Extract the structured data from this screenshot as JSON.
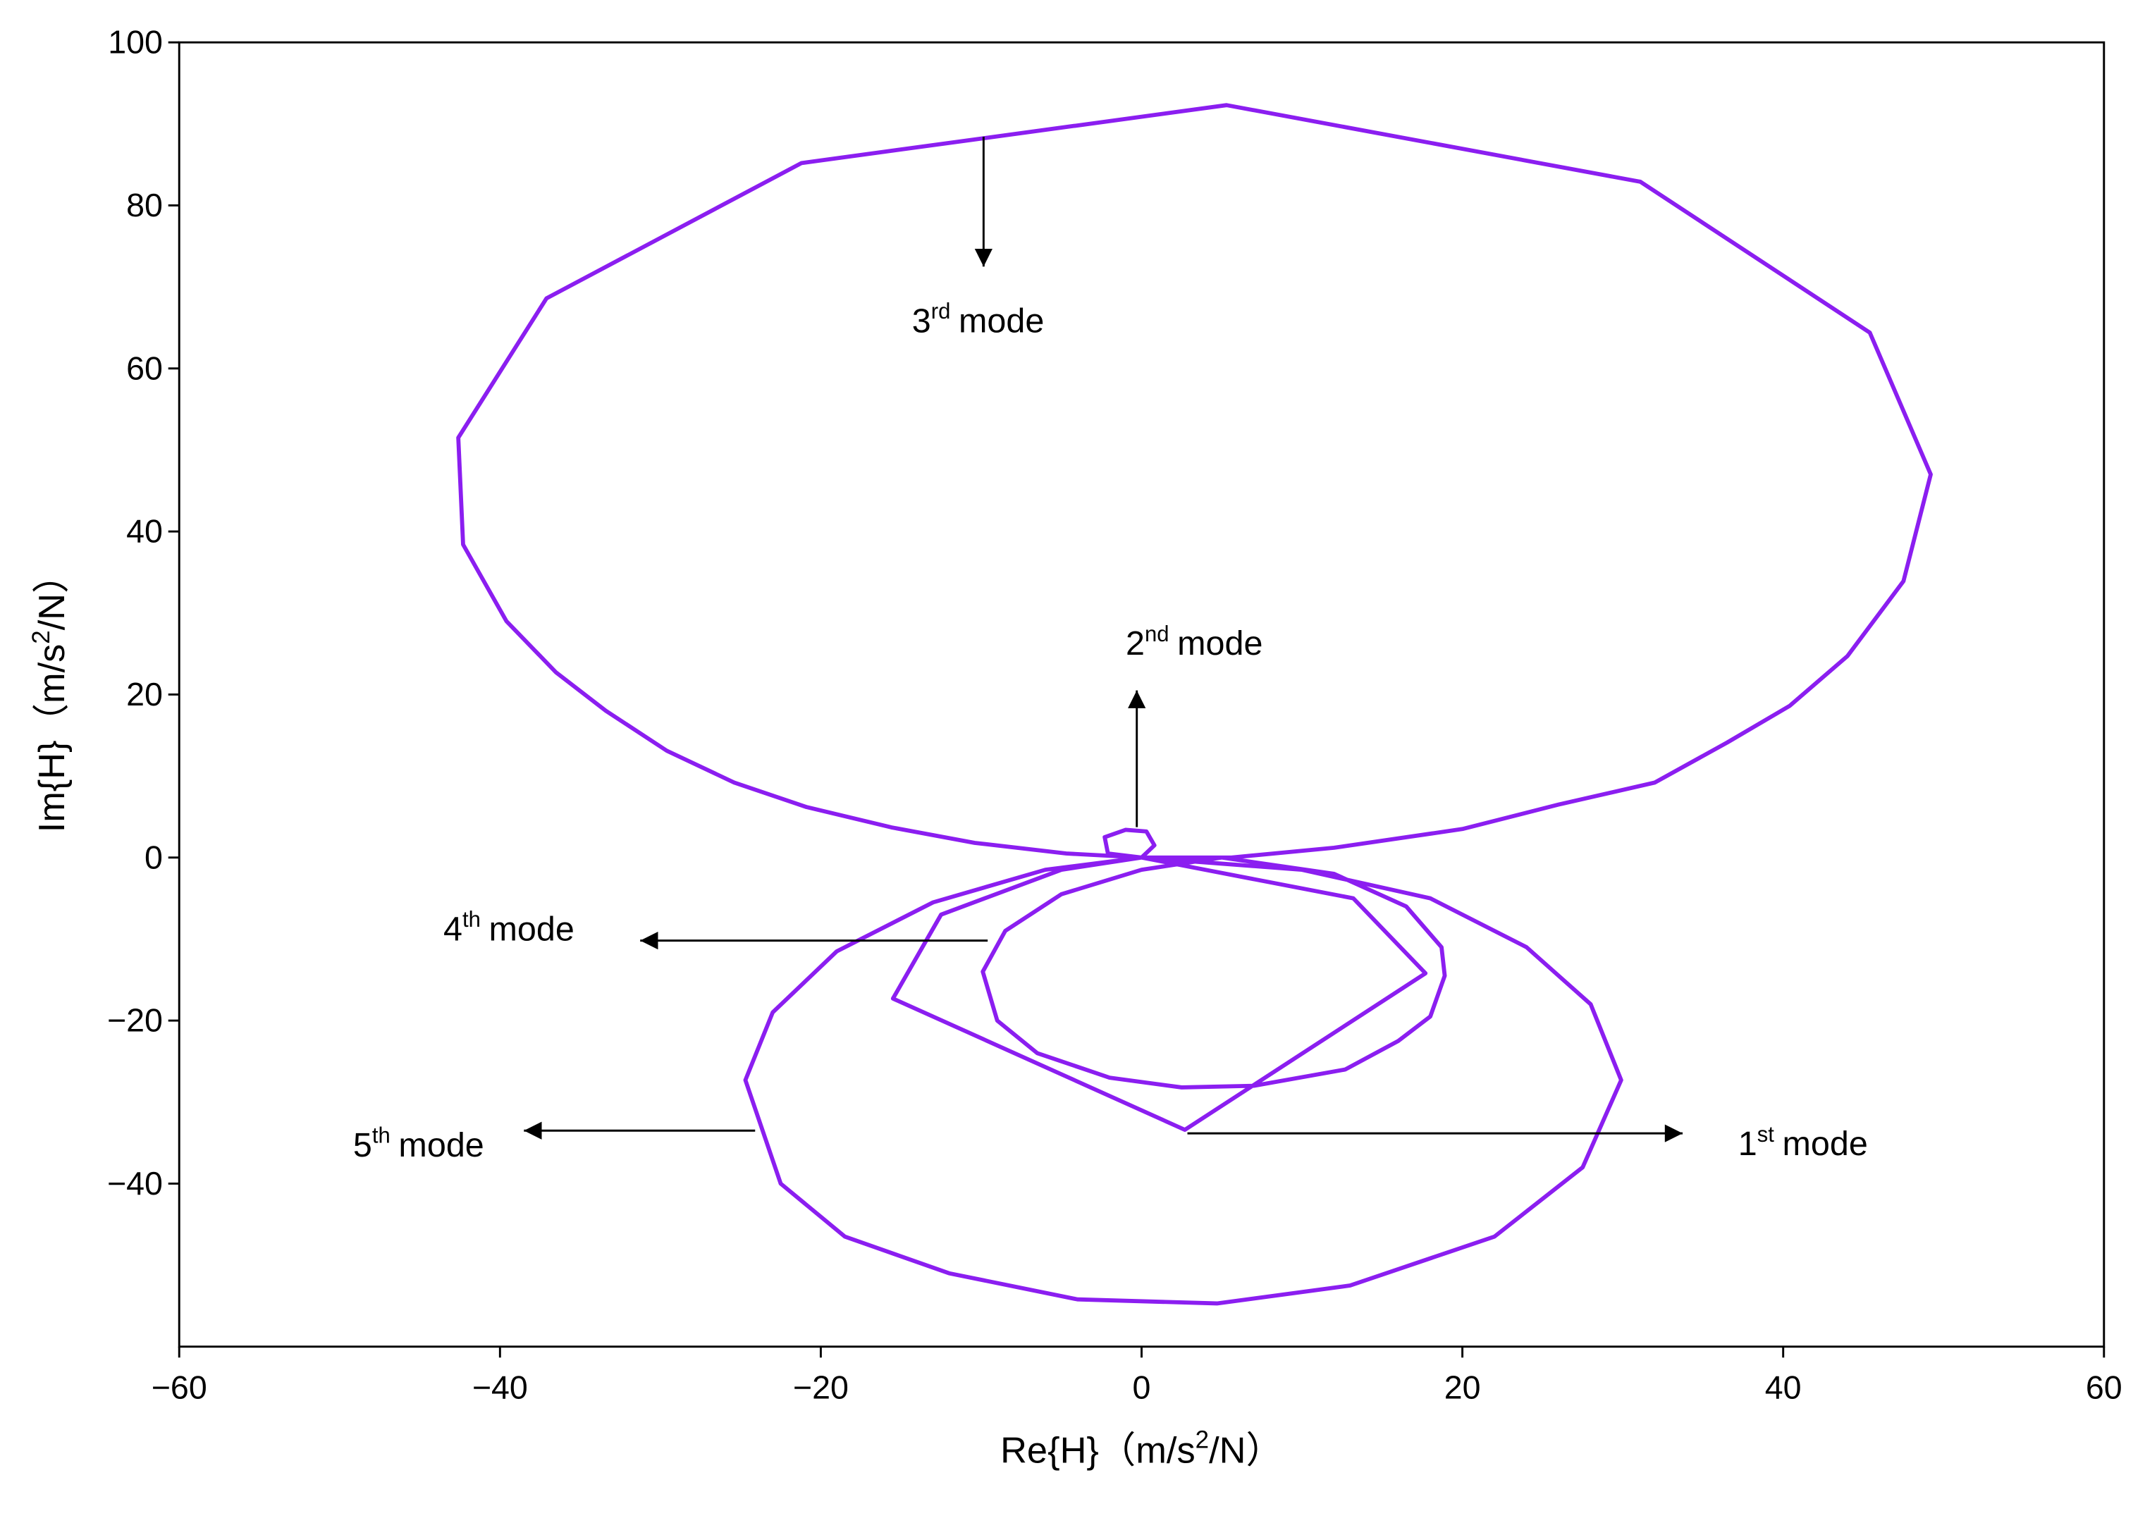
{
  "chart_data": {
    "type": "line",
    "x_label": {
      "before": "Re{H}（m/s",
      "sup": "2",
      "after": "/N）"
    },
    "y_label": {
      "before": "Im{H}（m/s",
      "sup": "2",
      "after": "/N）"
    },
    "xlim": [
      -60,
      60
    ],
    "ylim": [
      -60,
      100
    ],
    "xticks": [
      {
        "value": -60,
        "label": "−60"
      },
      {
        "value": -40,
        "label": "−40"
      },
      {
        "value": -20,
        "label": "−20"
      },
      0,
      20,
      40,
      60
    ],
    "yticks": [
      {
        "value": -40,
        "label": "−40"
      },
      {
        "value": -20,
        "label": "−20"
      },
      0,
      20,
      40,
      60,
      80,
      100
    ],
    "grid": false,
    "series": [
      {
        "color": "#8b1ef0",
        "x": [
          0,
          10,
          18,
          24,
          28,
          29.9,
          27.5,
          22,
          13,
          4.7,
          -4,
          -12,
          -18.5,
          -22.5,
          -24.7,
          -23,
          -19,
          -13,
          -6,
          0,
          5,
          12,
          16.5,
          18.7,
          18.9,
          18,
          16,
          12.7,
          7,
          2.5,
          -2,
          -6.5,
          -9,
          -9.9,
          -8.5,
          -5,
          0,
          5,
          0,
          13.2,
          17.7,
          2.7,
          -15.5,
          -12.5,
          -5,
          0,
          0.8,
          0.3,
          -1,
          -2.3,
          -2.1,
          0,
          5.6,
          12,
          20,
          26,
          32,
          36.5,
          40.4,
          44,
          47.5,
          49.2,
          45.4,
          31.1,
          5.3,
          -21.2,
          -37.1,
          -42.6,
          -42.3,
          -39.6,
          -36.5,
          -33.4,
          -29.6,
          -25.4,
          -20.9,
          -15.6,
          -10.4,
          -4.7,
          0
        ],
        "values": [
          0,
          -1.5,
          -5,
          -11,
          -18,
          -27.3,
          -38,
          -46.5,
          -52.5,
          -54.7,
          -54.2,
          -51,
          -46.5,
          -40,
          -27.3,
          -19,
          -11.5,
          -5.5,
          -1.5,
          0,
          0,
          -2,
          -6,
          -11,
          -14.5,
          -19.5,
          -22.5,
          -26,
          -28,
          -28.2,
          -27,
          -24,
          -20,
          -14,
          -9,
          -4.5,
          -1.5,
          0,
          0,
          -5,
          -14.2,
          -33.4,
          -17.3,
          -7,
          -1.5,
          0,
          1.5,
          3.2,
          3.4,
          2.5,
          0.5,
          0,
          0,
          1.2,
          3.5,
          6.5,
          9.2,
          14.1,
          18.6,
          24.7,
          33.9,
          47,
          64.4,
          82.9,
          92.3,
          85.2,
          68.6,
          51.5,
          38.4,
          29,
          22.7,
          18,
          13.1,
          9.2,
          6.2,
          3.7,
          1.8,
          0.5,
          0
        ]
      }
    ],
    "annotations": [
      {
        "base": "3",
        "sup": "rd",
        "text": "mode"
      },
      {
        "base": "2",
        "sup": "nd",
        "text": "mode"
      },
      {
        "base": "4",
        "sup": "th",
        "text": "mode"
      },
      {
        "base": "5",
        "sup": "th",
        "text": "mode"
      },
      {
        "base": "1",
        "sup": "st",
        "text": "mode"
      }
    ]
  }
}
